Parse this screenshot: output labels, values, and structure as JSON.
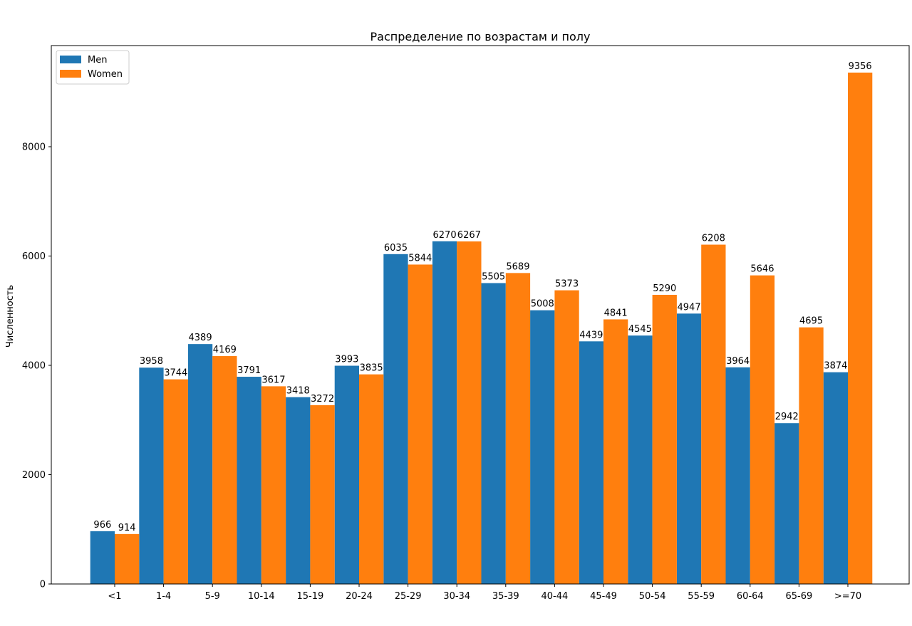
{
  "chart_data": {
    "type": "bar",
    "title": "Распределение по возрастам и полу",
    "xlabel": "",
    "ylabel": "Численность",
    "ylim": [
      0,
      9850
    ],
    "yticks": [
      0,
      2000,
      4000,
      6000,
      8000
    ],
    "grid": false,
    "legend_position": "top-left",
    "categories": [
      "<1",
      "1-4",
      "5-9",
      "10-14",
      "15-19",
      "20-24",
      "25-29",
      "30-34",
      "35-39",
      "40-44",
      "45-49",
      "50-54",
      "55-59",
      "60-64",
      "65-69",
      ">=70"
    ],
    "series": [
      {
        "name": "Men",
        "color": "#1f77b4",
        "values": [
          966,
          3958,
          4389,
          3791,
          3418,
          3993,
          6035,
          6270,
          5505,
          5008,
          4439,
          4545,
          4947,
          3964,
          2942,
          3874
        ]
      },
      {
        "name": "Women",
        "color": "#ff7f0e",
        "values": [
          914,
          3744,
          4169,
          3617,
          3272,
          3835,
          5844,
          6267,
          5689,
          5373,
          4841,
          5290,
          6208,
          5646,
          4695,
          9356
        ]
      }
    ]
  }
}
